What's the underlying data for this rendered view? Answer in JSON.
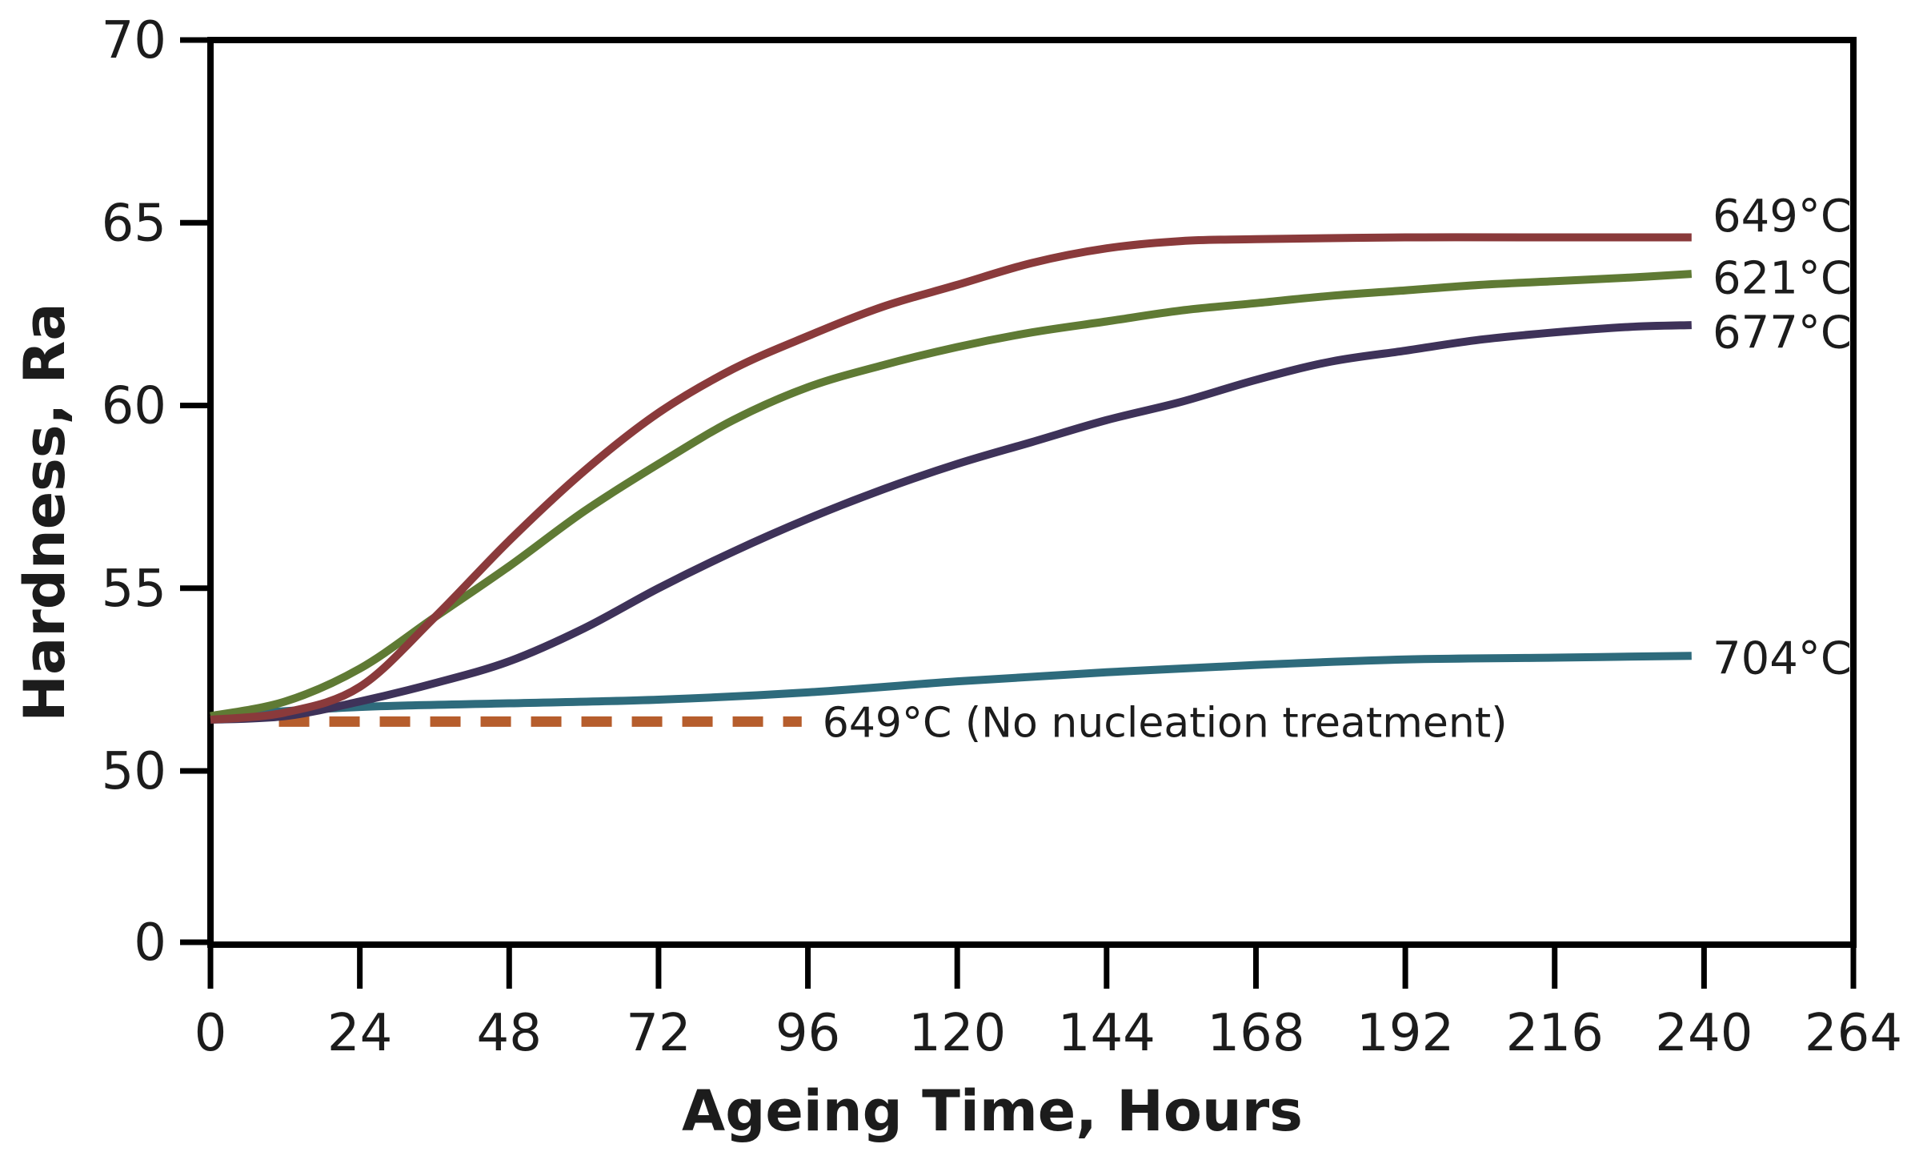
{
  "colors": {
    "background": "#ffffff",
    "frame": "#000000",
    "text": "#1c1c1c",
    "series_649": "#8a3a3b",
    "series_621": "#5f7a34",
    "series_677": "#3e3259",
    "series_704": "#2e6b7c",
    "series_649_no_nucleation": "#b65d2c"
  },
  "axes": {
    "x": {
      "title": "Ageing Time, Hours",
      "ticks": [
        {
          "label": "0",
          "value": 0
        },
        {
          "label": "24",
          "value": 24
        },
        {
          "label": "48",
          "value": 48
        },
        {
          "label": "72",
          "value": 72
        },
        {
          "label": "96",
          "value": 96
        },
        {
          "label": "120",
          "value": 120
        },
        {
          "label": "144",
          "value": 144
        },
        {
          "label": "168",
          "value": 168
        },
        {
          "label": "192",
          "value": 192
        },
        {
          "label": "216",
          "value": 216
        },
        {
          "label": "240",
          "value": 240
        },
        {
          "label": "264",
          "value": 264
        }
      ]
    },
    "y": {
      "title": "Hardness, Ra",
      "ticks": [
        {
          "label": "0",
          "value": 0
        },
        {
          "label": "50",
          "value": 50
        },
        {
          "label": "55",
          "value": 55
        },
        {
          "label": "60",
          "value": 60
        },
        {
          "label": "65",
          "value": 65
        },
        {
          "label": "70",
          "value": 70
        }
      ],
      "note": "broken axis: 0 at origin, then linear 50-70"
    }
  },
  "chart_data": {
    "type": "line",
    "title": "",
    "xlabel": "Ageing Time, Hours",
    "ylabel": "Hardness, Ra",
    "xlim": [
      0,
      264
    ],
    "ylim": [
      50,
      70
    ],
    "grid": false,
    "legend_position": "end-of-line labels (right side, inside plot)",
    "series": [
      {
        "name": "649°C",
        "color": "#8a3a3b",
        "style": "solid",
        "points": [
          [
            0,
            51.4
          ],
          [
            12,
            51.6
          ],
          [
            24,
            52.3
          ],
          [
            36,
            54.2
          ],
          [
            48,
            56.3
          ],
          [
            60,
            58.2
          ],
          [
            72,
            59.8
          ],
          [
            84,
            61.0
          ],
          [
            96,
            61.9
          ],
          [
            108,
            62.7
          ],
          [
            120,
            63.3
          ],
          [
            132,
            63.9
          ],
          [
            144,
            64.3
          ],
          [
            156,
            64.5
          ],
          [
            168,
            64.55
          ],
          [
            192,
            64.6
          ],
          [
            216,
            64.6
          ],
          [
            238,
            64.6
          ]
        ]
      },
      {
        "name": "621°C",
        "color": "#5f7a34",
        "style": "solid",
        "points": [
          [
            0,
            51.5
          ],
          [
            12,
            51.9
          ],
          [
            24,
            52.8
          ],
          [
            36,
            54.2
          ],
          [
            48,
            55.6
          ],
          [
            60,
            57.1
          ],
          [
            72,
            58.4
          ],
          [
            84,
            59.6
          ],
          [
            96,
            60.5
          ],
          [
            108,
            61.1
          ],
          [
            120,
            61.6
          ],
          [
            132,
            62.0
          ],
          [
            144,
            62.3
          ],
          [
            156,
            62.6
          ],
          [
            168,
            62.8
          ],
          [
            180,
            63.0
          ],
          [
            192,
            63.15
          ],
          [
            204,
            63.3
          ],
          [
            216,
            63.4
          ],
          [
            228,
            63.5
          ],
          [
            238,
            63.6
          ]
        ]
      },
      {
        "name": "677°C",
        "color": "#3e3259",
        "style": "solid",
        "points": [
          [
            0,
            51.4
          ],
          [
            12,
            51.5
          ],
          [
            24,
            51.9
          ],
          [
            36,
            52.4
          ],
          [
            48,
            53.0
          ],
          [
            60,
            53.9
          ],
          [
            72,
            55.0
          ],
          [
            84,
            56.0
          ],
          [
            96,
            56.9
          ],
          [
            108,
            57.7
          ],
          [
            120,
            58.4
          ],
          [
            132,
            59.0
          ],
          [
            144,
            59.6
          ],
          [
            156,
            60.1
          ],
          [
            168,
            60.7
          ],
          [
            180,
            61.2
          ],
          [
            192,
            61.5
          ],
          [
            204,
            61.8
          ],
          [
            216,
            62.0
          ],
          [
            228,
            62.15
          ],
          [
            238,
            62.2
          ]
        ]
      },
      {
        "name": "704°C",
        "color": "#2e6b7c",
        "style": "solid",
        "points": [
          [
            0,
            51.5
          ],
          [
            24,
            51.75
          ],
          [
            48,
            51.85
          ],
          [
            72,
            51.95
          ],
          [
            96,
            52.15
          ],
          [
            120,
            52.45
          ],
          [
            144,
            52.7
          ],
          [
            168,
            52.9
          ],
          [
            192,
            53.05
          ],
          [
            216,
            53.1
          ],
          [
            238,
            53.15
          ]
        ]
      },
      {
        "name": "649°C (No nucleation treatment)",
        "color": "#b65d2c",
        "style": "dashed",
        "points": [
          [
            11,
            51.35
          ],
          [
            95,
            51.35
          ]
        ]
      }
    ]
  }
}
